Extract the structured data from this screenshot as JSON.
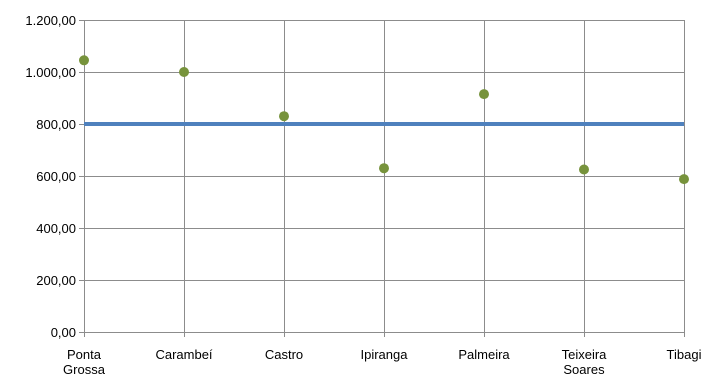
{
  "chart_data": {
    "type": "scatter",
    "title": "",
    "xlabel": "",
    "ylabel": "",
    "categories": [
      [
        "Ponta",
        "Grossa"
      ],
      [
        "Carambeí"
      ],
      [
        "Castro"
      ],
      [
        "Ipiranga"
      ],
      [
        "Palmeira"
      ],
      [
        "Teixeira",
        "Soares"
      ],
      [
        "Tibagi"
      ]
    ],
    "series": [
      {
        "values": [
          1045,
          1000,
          830,
          630,
          915,
          625,
          588
        ],
        "color": "#77933c"
      }
    ],
    "reference_line": {
      "value": 800,
      "color": "#4f81bd"
    },
    "y_ticks": [
      "0,00",
      "200,00",
      "400,00",
      "600,00",
      "800,00",
      "1.000,00",
      "1.200,00"
    ],
    "ylim": [
      0,
      1200
    ],
    "grid": true,
    "legend": "none"
  }
}
